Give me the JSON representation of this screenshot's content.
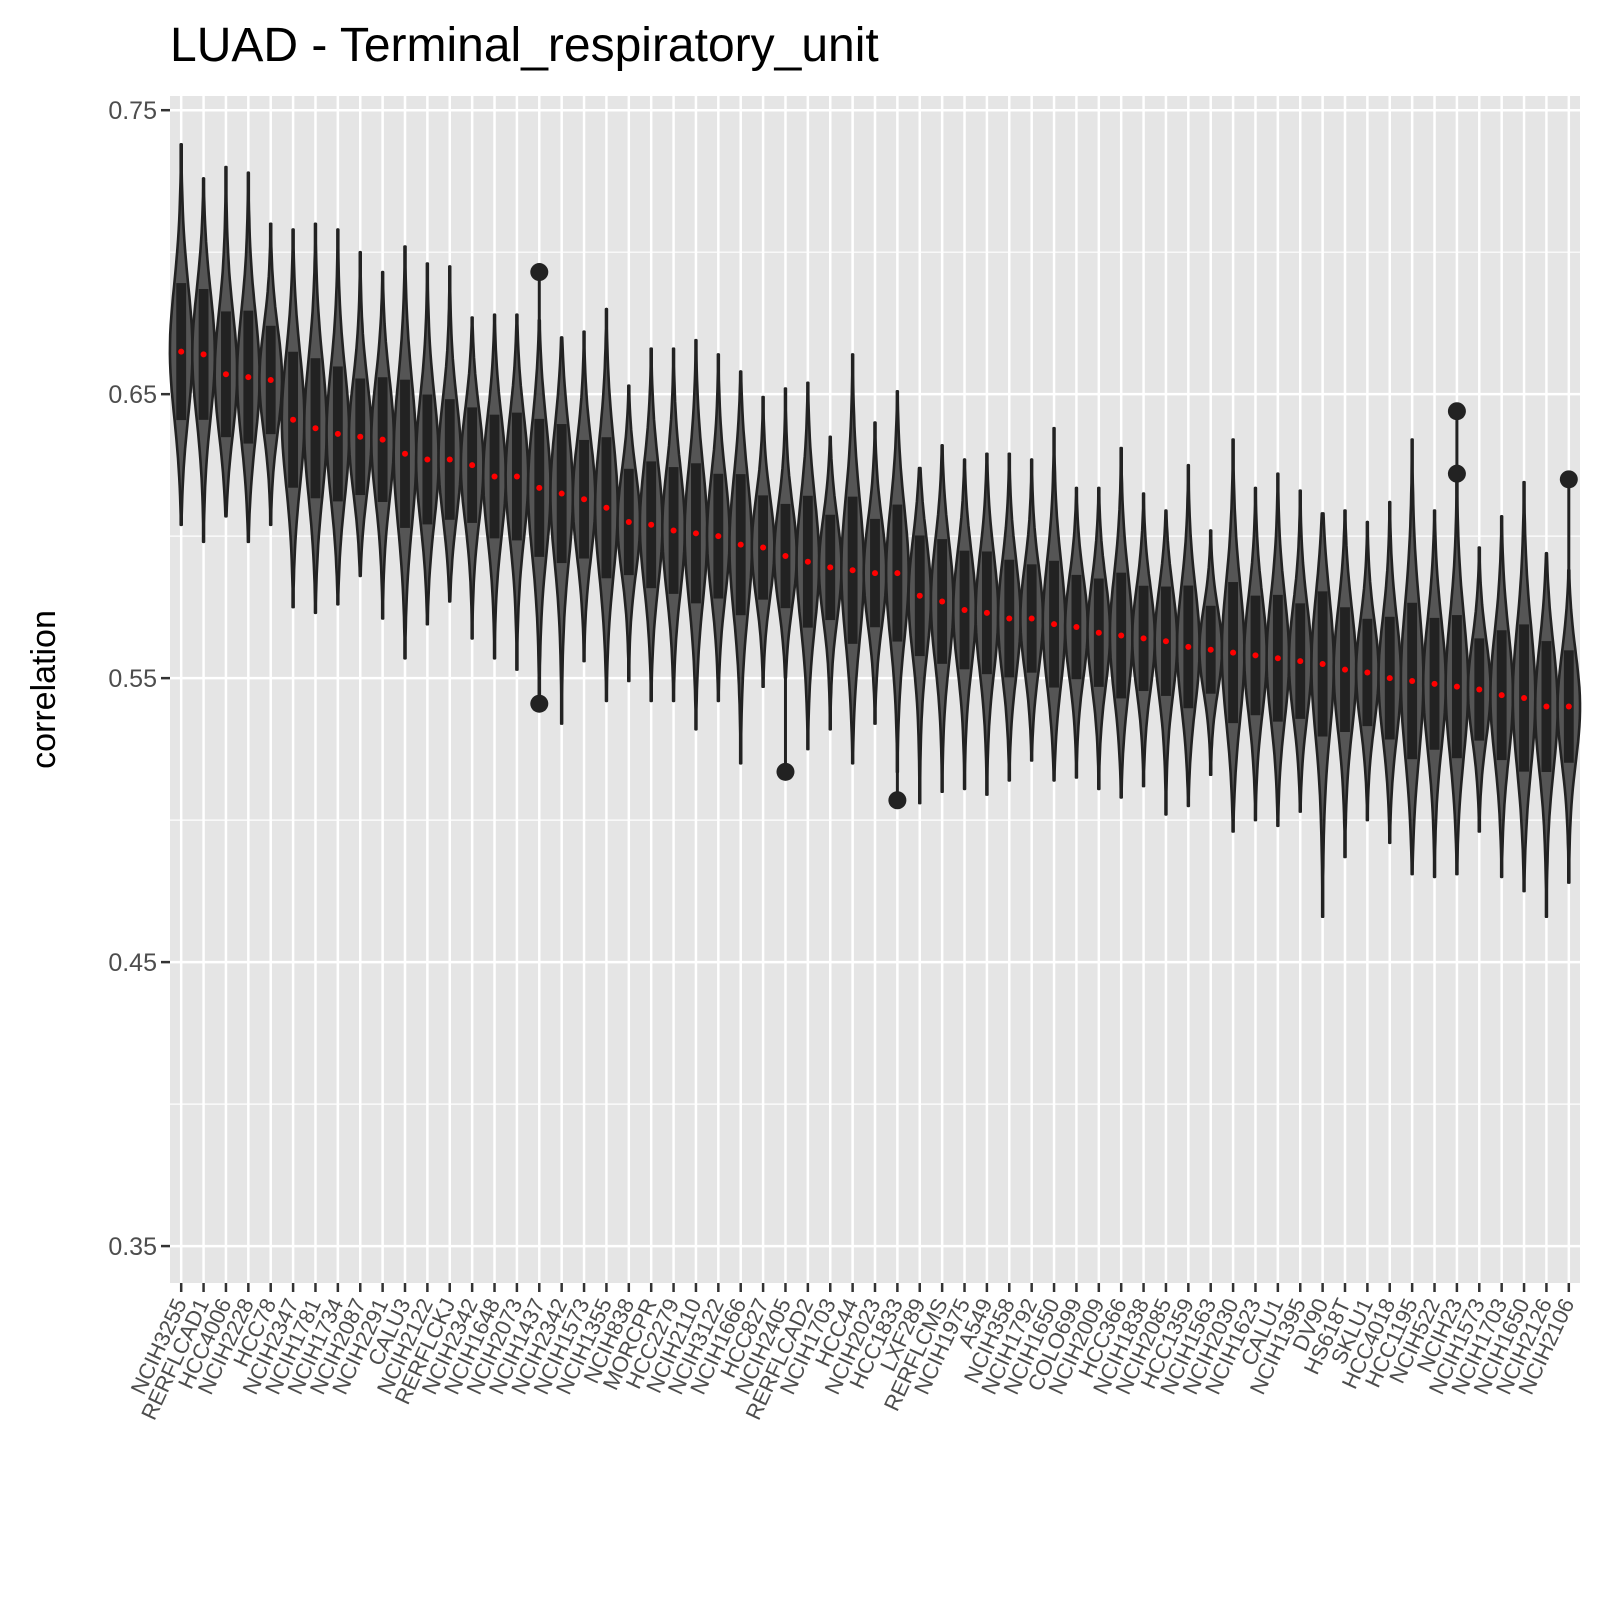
{
  "chart_data": {
    "type": "violin",
    "title": "LUAD - Terminal_respiratory_unit",
    "xlabel": "",
    "ylabel": "correlation",
    "ylim": [
      0.337,
      0.755
    ],
    "yticks": [
      0.35,
      0.45,
      0.55,
      0.65,
      0.75
    ],
    "ytick_labels": [
      "0.35",
      "0.45",
      "0.55",
      "0.65",
      "0.75"
    ],
    "grid": true,
    "legend": "none",
    "colors": {
      "panel": "#e5e5e5",
      "grid": "#ffffff",
      "outline": "#222222",
      "mean_point": "#ff0000",
      "outlier": "#222222"
    },
    "categories": [
      "NCIH3255",
      "RERFLCAD1",
      "HCC4006",
      "NCIH2228",
      "HCC78",
      "NCIH2347",
      "NCIH1781",
      "NCIH1734",
      "NCIH2087",
      "NCIH2291",
      "CALU3",
      "NCIH2122",
      "RERFLCKJ",
      "NCIH2342",
      "NCIH1648",
      "NCIH2073",
      "NCIH1437",
      "NCIH2342",
      "NCIH1573",
      "NCIH1355",
      "NCIH838",
      "MORCPR",
      "HCC2279",
      "NCIH2110",
      "NCIH3122",
      "NCIH1666",
      "HCC827",
      "NCIH2405",
      "RERFLCAD2",
      "NCIH1703",
      "HCC44",
      "NCIH2023",
      "HCC1833",
      "LXF289",
      "RERFLCMS",
      "NCIH1975",
      "A549",
      "NCIH358",
      "NCIH1792",
      "NCIH1650",
      "COLO699",
      "NCIH2009",
      "HCC366",
      "NCIH1838",
      "NCIH2085",
      "HCC1359",
      "NCIH1563",
      "NCIH2030",
      "NCIH1623",
      "CALU1",
      "NCIH1395",
      "DV90",
      "HS618T",
      "SKLU1",
      "HCC4018",
      "HCC1195",
      "NCIH522",
      "NCIH23",
      "NCIH1573",
      "NCIH1703",
      "NCIH1650",
      "NCIH2126",
      "NCIH2106"
    ],
    "means": [
      0.665,
      0.664,
      0.657,
      0.656,
      0.655,
      0.641,
      0.638,
      0.636,
      0.635,
      0.634,
      0.629,
      0.627,
      0.627,
      0.625,
      0.621,
      0.621,
      0.617,
      0.615,
      0.613,
      0.61,
      0.605,
      0.604,
      0.602,
      0.601,
      0.6,
      0.597,
      0.596,
      0.593,
      0.591,
      0.589,
      0.588,
      0.587,
      0.587,
      0.579,
      0.577,
      0.574,
      0.573,
      0.571,
      0.571,
      0.569,
      0.568,
      0.566,
      0.565,
      0.564,
      0.563,
      0.561,
      0.56,
      0.559,
      0.558,
      0.557,
      0.556,
      0.555,
      0.553,
      0.552,
      0.55,
      0.549,
      0.548,
      0.547,
      0.546,
      0.544,
      0.543,
      0.54,
      0.54
    ],
    "mins": [
      0.604,
      0.598,
      0.607,
      0.598,
      0.604,
      0.575,
      0.573,
      0.576,
      0.586,
      0.571,
      0.557,
      0.569,
      0.577,
      0.564,
      0.557,
      0.553,
      0.541,
      0.534,
      0.556,
      0.542,
      0.549,
      0.542,
      0.542,
      0.532,
      0.542,
      0.52,
      0.547,
      0.55,
      0.525,
      0.532,
      0.52,
      0.534,
      0.517,
      0.506,
      0.51,
      0.511,
      0.509,
      0.514,
      0.521,
      0.514,
      0.515,
      0.511,
      0.508,
      0.512,
      0.502,
      0.505,
      0.516,
      0.496,
      0.5,
      0.498,
      0.503,
      0.466,
      0.487,
      0.5,
      0.492,
      0.481,
      0.48,
      0.481,
      0.496,
      0.48,
      0.475,
      0.466,
      0.478
    ],
    "maxs": [
      0.738,
      0.726,
      0.73,
      0.728,
      0.71,
      0.708,
      0.71,
      0.708,
      0.7,
      0.693,
      0.702,
      0.696,
      0.695,
      0.677,
      0.678,
      0.678,
      0.676,
      0.67,
      0.672,
      0.68,
      0.653,
      0.666,
      0.666,
      0.669,
      0.664,
      0.658,
      0.649,
      0.652,
      0.654,
      0.635,
      0.664,
      0.64,
      0.651,
      0.624,
      0.632,
      0.627,
      0.629,
      0.629,
      0.627,
      0.638,
      0.617,
      0.617,
      0.631,
      0.615,
      0.609,
      0.625,
      0.602,
      0.634,
      0.617,
      0.622,
      0.616,
      0.608,
      0.609,
      0.605,
      0.612,
      0.634,
      0.609,
      0.621,
      0.596,
      0.607,
      0.619,
      0.594,
      0.588
    ],
    "outliers": [
      {
        "category_index": 16,
        "values": [
          0.693,
          0.541
        ]
      },
      {
        "category_index": 27,
        "values": [
          0.517
        ]
      },
      {
        "category_index": 32,
        "values": [
          0.507
        ]
      },
      {
        "category_index": 57,
        "values": [
          0.644,
          0.622
        ]
      },
      {
        "category_index": 62,
        "values": [
          0.62
        ]
      }
    ]
  },
  "chart_data_note_free": true
}
